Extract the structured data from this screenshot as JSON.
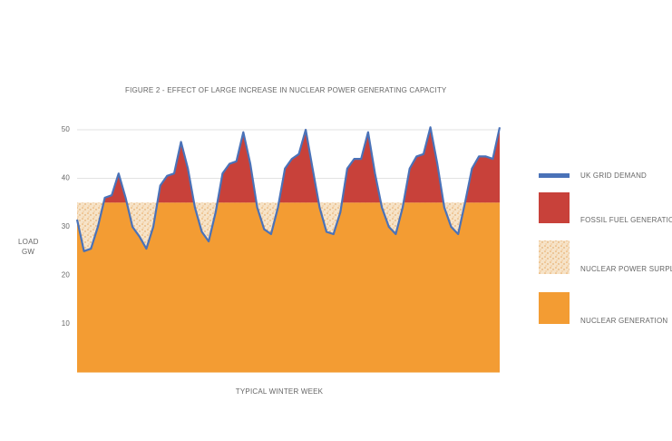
{
  "chart_data": {
    "type": "area",
    "title": "FIGURE 2 - EFFECT OF LARGE INCREASE IN NUCLEAR POWER GENERATING CAPACITY",
    "y_label": [
      "LOAD",
      "GW"
    ],
    "x_label": "TYPICAL WINTER WEEK",
    "ylim": [
      0,
      50
    ],
    "yticks": [
      10,
      20,
      30,
      40,
      50
    ],
    "grid": true,
    "series": [
      {
        "name": "UK GRID DEMAND",
        "color": "#4a72b8",
        "values": [
          31.5,
          25,
          25.5,
          30,
          36,
          36.5,
          41,
          36,
          30,
          28,
          25.5,
          30,
          38.5,
          40.5,
          41,
          47.5,
          42,
          34,
          29,
          27,
          33,
          41,
          43,
          43.5,
          49.5,
          43,
          34,
          29.5,
          28.5,
          34,
          42,
          44,
          45,
          50,
          42,
          34,
          29,
          28.5,
          33,
          42,
          44,
          44,
          49.5,
          41,
          34,
          30,
          28.5,
          34,
          42,
          44.5,
          45,
          50.5,
          43,
          34,
          30,
          28.5,
          35,
          42,
          44.5,
          44.5,
          44,
          50.5
        ]
      },
      {
        "name": "FOSSIL FUEL GENERATION",
        "color": "#c8413a"
      },
      {
        "name": "NUCLEAR POWER SURPLUS",
        "color": "#eec99a"
      },
      {
        "name": "NUCLEAR GENERATION",
        "color": "#f39c33",
        "level": 35
      }
    ]
  }
}
